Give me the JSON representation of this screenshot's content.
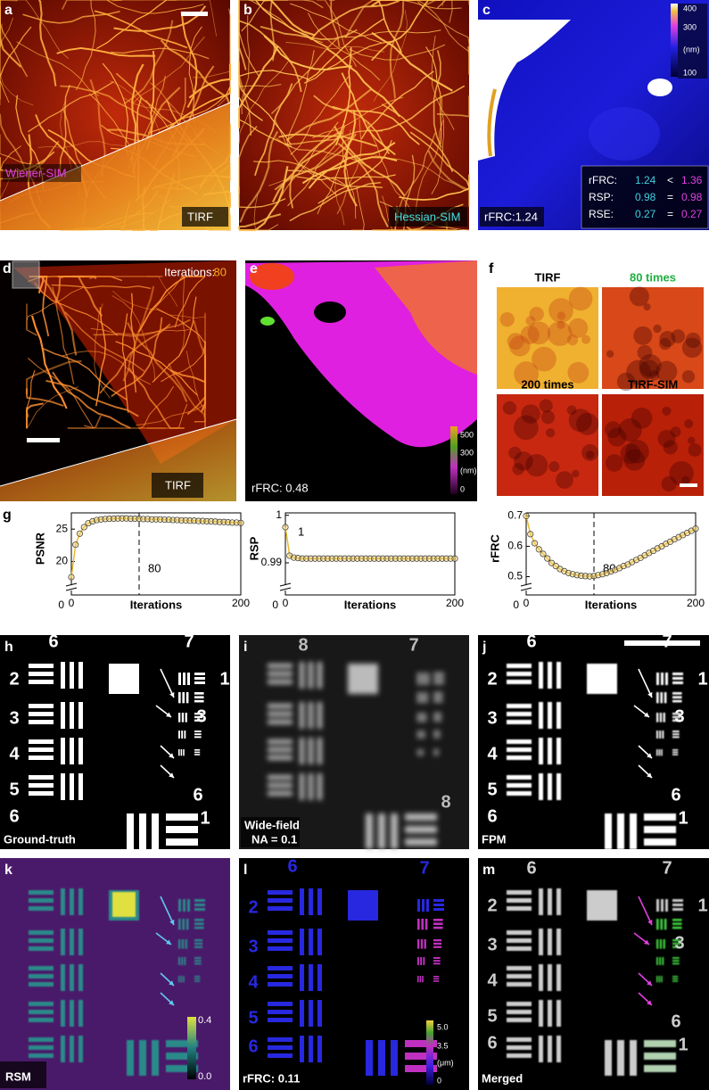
{
  "panels": {
    "a": {
      "label": "a",
      "top_text": "Wiener-SIM",
      "bottom_text": "TIRF"
    },
    "b": {
      "label": "b",
      "caption": "Hessian-SIM"
    },
    "c": {
      "label": "c",
      "caption": "rFRC:1.24",
      "colorbar": [
        "400",
        "300",
        "(nm)",
        "100"
      ],
      "table": [
        [
          "rFRC:",
          "1.24",
          "<",
          "1.36"
        ],
        [
          "RSP:",
          "0.98",
          "=",
          "0.98"
        ],
        [
          "RSE:",
          "0.27",
          "=",
          "0.27"
        ]
      ]
    },
    "d": {
      "label": "d",
      "iter_label": "Iterations:",
      "iter_value": "80",
      "caption": "TIRF"
    },
    "e": {
      "label": "e",
      "caption": "rFRC: 0.48",
      "colorbar": [
        "500",
        "300",
        "(nm)",
        "0"
      ]
    },
    "f": {
      "label": "f",
      "tiles": [
        "TIRF",
        "80 times",
        "200 times",
        "TIRF-SIM"
      ]
    },
    "g": {
      "label": "g"
    },
    "h": {
      "label": "h",
      "caption": "Ground-truth",
      "digits": [
        "6",
        "7",
        "2",
        "3",
        "4",
        "5",
        "6",
        "6",
        "1",
        "1",
        "3"
      ]
    },
    "i": {
      "label": "i",
      "caption": [
        "Wide-field",
        "NA = 0.1"
      ],
      "digits": [
        "8",
        "7",
        "8"
      ]
    },
    "j": {
      "label": "j",
      "caption": "FPM",
      "digits": [
        "6",
        "7",
        "2",
        "3",
        "4",
        "5",
        "6",
        "6",
        "1",
        "1",
        "3"
      ]
    },
    "k": {
      "label": "k",
      "caption": "RSM",
      "colorbar": [
        "0.4",
        "0.0"
      ]
    },
    "l": {
      "label": "l",
      "caption": "rFRC: 0.11",
      "colorbar": [
        "5.0",
        "3.5",
        "(μm)",
        "0"
      ],
      "digits": [
        "6",
        "7",
        "2",
        "3",
        "4",
        "5",
        "6"
      ]
    },
    "m": {
      "label": "m",
      "caption": "Merged",
      "digits": [
        "6",
        "7",
        "2",
        "3",
        "4",
        "5",
        "6",
        "6",
        "1",
        "1",
        "3"
      ]
    }
  },
  "chart_data": [
    {
      "type": "line",
      "y_label": "PSNR",
      "x_label": "Iterations",
      "x": [
        0,
        5,
        10,
        15,
        20,
        25,
        30,
        35,
        40,
        45,
        50,
        55,
        60,
        65,
        70,
        75,
        80,
        85,
        90,
        95,
        100,
        105,
        110,
        115,
        120,
        125,
        130,
        135,
        140,
        145,
        150,
        155,
        160,
        165,
        170,
        175,
        180,
        185,
        190,
        195,
        200
      ],
      "series": [
        {
          "color": "#e8b830",
          "values": [
            17.6,
            22.6,
            24.3,
            25.3,
            25.9,
            26.2,
            26.4,
            26.5,
            26.55,
            26.6,
            26.6,
            26.65,
            26.65,
            26.65,
            26.6,
            26.6,
            26.6,
            26.55,
            26.55,
            26.5,
            26.5,
            26.5,
            26.45,
            26.45,
            26.4,
            26.4,
            26.35,
            26.35,
            26.3,
            26.3,
            26.25,
            26.25,
            26.2,
            26.2,
            26.15,
            26.1,
            26.1,
            26.05,
            26.0,
            26.0,
            25.95
          ]
        }
      ],
      "xlim": [
        0,
        200
      ],
      "xticks": [
        0,
        200
      ],
      "ylim": [
        16.5,
        27.5
      ],
      "yticks": [
        20,
        25
      ],
      "axis_break_label": "0",
      "vline": 80,
      "annotation": "80"
    },
    {
      "type": "line",
      "y_label": "RSP",
      "x_label": "Iterations",
      "x": [
        0,
        5,
        10,
        15,
        20,
        25,
        30,
        35,
        40,
        45,
        50,
        55,
        60,
        65,
        70,
        75,
        80,
        85,
        90,
        95,
        100,
        105,
        110,
        115,
        120,
        125,
        130,
        135,
        140,
        145,
        150,
        155,
        160,
        165,
        170,
        175,
        180,
        185,
        190,
        195,
        200
      ],
      "series": [
        {
          "color": "#e8b830",
          "values": [
            0.9975,
            0.9915,
            0.9911,
            0.991,
            0.9909,
            0.9909,
            0.9909,
            0.9909,
            0.9909,
            0.9909,
            0.9909,
            0.9909,
            0.9909,
            0.9909,
            0.9909,
            0.9909,
            0.9909,
            0.9909,
            0.9909,
            0.9909,
            0.9909,
            0.9909,
            0.9909,
            0.9909,
            0.9909,
            0.9909,
            0.9909,
            0.9909,
            0.9909,
            0.9909,
            0.9909,
            0.9909,
            0.9909,
            0.9909,
            0.9909,
            0.9909,
            0.9909,
            0.9909,
            0.9909,
            0.9909,
            0.9909
          ]
        }
      ],
      "xlim": [
        0,
        200
      ],
      "xticks": [
        0,
        200
      ],
      "ylim": [
        0.9855,
        1.0005
      ],
      "yticks": [
        0.99,
        1
      ],
      "axis_break_label": "0",
      "annotation": "1"
    },
    {
      "type": "line",
      "y_label": "rFRC",
      "x_label": "Iterations",
      "x": [
        0,
        5,
        10,
        15,
        20,
        25,
        30,
        35,
        40,
        45,
        50,
        55,
        60,
        65,
        70,
        75,
        80,
        85,
        90,
        95,
        100,
        105,
        110,
        115,
        120,
        125,
        130,
        135,
        140,
        145,
        150,
        155,
        160,
        165,
        170,
        175,
        180,
        185,
        190,
        195,
        200
      ],
      "series": [
        {
          "color": "#e8b830",
          "values": [
            0.7,
            0.64,
            0.61,
            0.59,
            0.575,
            0.56,
            0.545,
            0.535,
            0.525,
            0.518,
            0.512,
            0.508,
            0.505,
            0.503,
            0.502,
            0.501,
            0.502,
            0.505,
            0.508,
            0.512,
            0.517,
            0.522,
            0.528,
            0.535,
            0.54,
            0.548,
            0.555,
            0.562,
            0.57,
            0.578,
            0.585,
            0.593,
            0.6,
            0.608,
            0.615,
            0.623,
            0.63,
            0.637,
            0.644,
            0.651,
            0.658
          ]
        }
      ],
      "xlim": [
        0,
        200
      ],
      "xticks": [
        0,
        200
      ],
      "ylim": [
        0.475,
        0.71
      ],
      "yticks": [
        0.5,
        0.6,
        0.7
      ],
      "axis_break_label": "0",
      "vline": 80,
      "annotation": "80"
    }
  ]
}
